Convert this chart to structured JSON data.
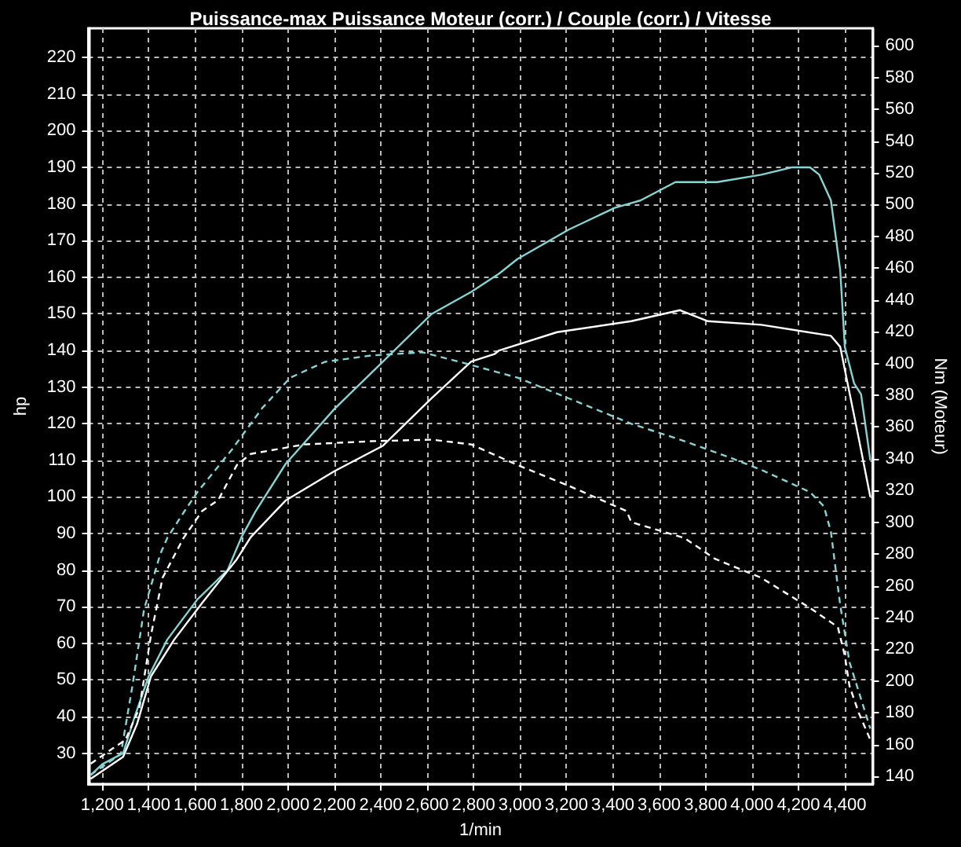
{
  "chart_data": {
    "type": "line",
    "title": "Puissance-max Puissance Moteur (corr.) / Couple (corr.) / Vitesse",
    "xlabel": "1/min",
    "ylabel": "hp",
    "y2label": "Nm (Moteur)",
    "xlim": [
      1140,
      4520
    ],
    "xticks": [
      {
        "value": 1200,
        "label": "1,200"
      },
      {
        "value": 1400,
        "label": "1,400"
      },
      {
        "value": 1600,
        "label": "1,600"
      },
      {
        "value": 1800,
        "label": "1,800"
      },
      {
        "value": 2000,
        "label": "2,000"
      },
      {
        "value": 2200,
        "label": "2,200"
      },
      {
        "value": 2400,
        "label": "2,400"
      },
      {
        "value": 2600,
        "label": "2,600"
      },
      {
        "value": 2800,
        "label": "2,800"
      },
      {
        "value": 3000,
        "label": "3,000"
      },
      {
        "value": 3200,
        "label": "3,200"
      },
      {
        "value": 3400,
        "label": "3,400"
      },
      {
        "value": 3600,
        "label": "3,600"
      },
      {
        "value": 3800,
        "label": "3,800"
      },
      {
        "value": 4000,
        "label": "4,000"
      },
      {
        "value": 4200,
        "label": "4,200"
      },
      {
        "value": 4400,
        "label": "4,400"
      }
    ],
    "ylim": [
      21.5,
      228
    ],
    "yticks": [
      30,
      40,
      50,
      60,
      70,
      80,
      90,
      100,
      110,
      120,
      130,
      140,
      150,
      160,
      170,
      180,
      190,
      200,
      210,
      220
    ],
    "y2lim": [
      135,
      611
    ],
    "y2ticks": [
      140,
      160,
      180,
      200,
      220,
      240,
      260,
      280,
      300,
      320,
      340,
      360,
      380,
      400,
      420,
      440,
      460,
      480,
      500,
      520,
      540,
      560,
      580,
      600
    ],
    "grid": true,
    "marker": "none",
    "series": [
      {
        "color": "#86d4d4",
        "line_style": "solid",
        "x": [
          1150,
          1200,
          1290,
          1340,
          1400,
          1480,
          1610,
          1740,
          1800,
          1860,
          1990,
          2200,
          2410,
          2620,
          2790,
          2910,
          2990,
          3210,
          3410,
          3520,
          3670,
          3850,
          4040,
          4170,
          4250,
          4290,
          4340,
          4380,
          4400,
          4440,
          4470,
          4510
        ],
        "values": [
          24,
          27,
          30,
          40,
          51,
          61,
          72,
          80,
          89,
          96,
          109,
          124,
          137,
          150,
          156,
          161,
          165,
          173,
          179,
          181,
          186,
          186,
          188,
          190,
          190,
          188,
          181,
          162,
          141,
          131,
          128,
          110
        ]
      },
      {
        "color": "#ffffff",
        "line_style": "solid",
        "x": [
          1150,
          1290,
          1350,
          1410,
          1510,
          1630,
          1780,
          1840,
          1990,
          2200,
          2410,
          2620,
          2790,
          2890,
          2910,
          3160,
          3480,
          3690,
          3810,
          4040,
          4340,
          4380,
          4460,
          4510
        ],
        "values": [
          23,
          29,
          38,
          51,
          61,
          71,
          83,
          89,
          99,
          107,
          114,
          127,
          137,
          139,
          140,
          145,
          148,
          151,
          148,
          147,
          144,
          141,
          116,
          100
        ]
      },
      {
        "color": "#86d4d4",
        "line_style": "dashed",
        "axis": "y2",
        "x": [
          1150,
          1280,
          1330,
          1380,
          1450,
          1480,
          1550,
          1610,
          1760,
          1890,
          2010,
          2160,
          2360,
          2580,
          2740,
          2790,
          2990,
          3210,
          3480,
          3690,
          3900,
          4040,
          4250,
          4310,
          4340,
          4380,
          4420,
          4510
        ],
        "values": [
          141,
          154,
          197,
          245,
          280,
          290,
          306,
          319,
          346,
          372,
          391,
          401,
          405,
          407,
          401,
          399,
          391,
          378,
          362,
          352,
          341,
          333,
          319,
          310,
          294,
          248,
          212,
          170
        ]
      },
      {
        "color": "#ffffff",
        "line_style": "dashed",
        "axis": "y2",
        "x": [
          1150,
          1300,
          1360,
          1410,
          1460,
          1550,
          1630,
          1700,
          1780,
          1840,
          2070,
          2360,
          2620,
          2790,
          2990,
          3210,
          3460,
          3480,
          3710,
          3840,
          4040,
          4250,
          4370,
          4400,
          4420,
          4460,
          4510
        ],
        "values": [
          148,
          163,
          183,
          229,
          265,
          290,
          307,
          314,
          336,
          343,
          349,
          351,
          352,
          349,
          336,
          323,
          307,
          300,
          290,
          277,
          265,
          246,
          234,
          216,
          197,
          180,
          163
        ]
      }
    ]
  }
}
